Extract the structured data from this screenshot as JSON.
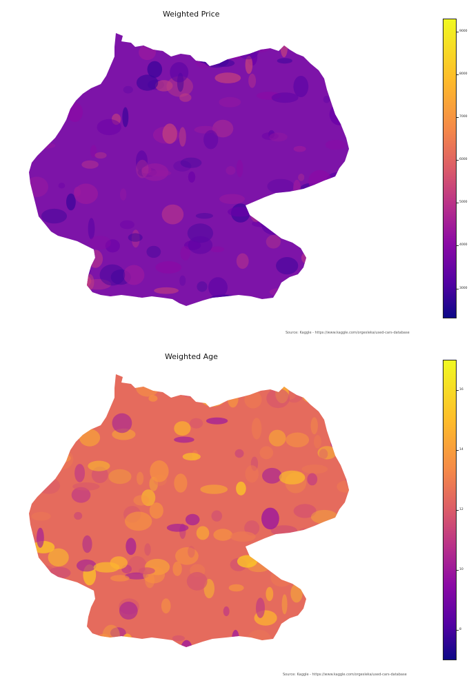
{
  "maps": [
    {
      "title": "Weighted Price",
      "source": "Source: Kaggle - https://www.kaggle.com/orgesleka/used-cars-database",
      "colorbar": {
        "colormap": "plasma",
        "min": 2300,
        "max": 9300,
        "ticks": [
          "3000",
          "4000",
          "5000",
          "6000",
          "7000",
          "8000",
          "9000"
        ],
        "tick_values": [
          3000,
          4000,
          5000,
          6000,
          7000,
          8000,
          9000
        ]
      },
      "base_color": "#7d14a8",
      "region_colors": [
        "#5c04a5",
        "#3d049b",
        "#9a1a9f",
        "#b0308f",
        "#c2407f",
        "#6a00a8",
        "#8b0aa5"
      ]
    },
    {
      "title": "Weighted Age",
      "source": "Source: Kaggle - https://www.kaggle.com/orgesleka/used-cars-database",
      "colorbar": {
        "colormap": "plasma",
        "min": 7.0,
        "max": 17.0,
        "ticks": [
          "8",
          "10",
          "12",
          "14",
          "16"
        ],
        "tick_values": [
          8,
          10,
          12,
          14,
          16
        ]
      },
      "base_color": "#e56b5d",
      "region_colors": [
        "#f89540",
        "#fdb42f",
        "#d5546e",
        "#c03a83",
        "#fdc627",
        "#9c179e",
        "#ed7953"
      ]
    }
  ]
}
